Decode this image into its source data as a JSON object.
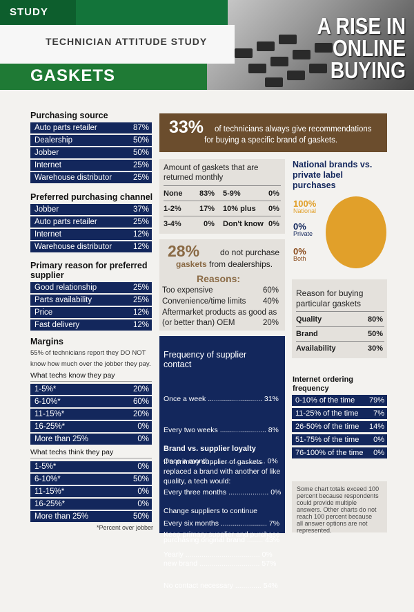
{
  "header": {
    "study_tab": "STUDY",
    "subtitle": "TECHNICIAN ATTITUDE STUDY",
    "section_title": "GASKETS",
    "headline": [
      "A RISE IN",
      "ONLINE",
      "BUYING"
    ]
  },
  "purchasing_source": {
    "title": "Purchasing source",
    "rows": [
      {
        "label": "Auto parts retailer",
        "value": "87%"
      },
      {
        "label": "Dealership",
        "value": "50%"
      },
      {
        "label": "Jobber",
        "value": "50%"
      },
      {
        "label": "Internet",
        "value": "25%"
      },
      {
        "label": "Warehouse distributor",
        "value": "25%"
      }
    ]
  },
  "preferred_channel": {
    "title": "Preferred purchasing channel",
    "rows": [
      {
        "label": "Jobber",
        "value": "37%"
      },
      {
        "label": "Auto parts retailer",
        "value": "25%"
      },
      {
        "label": "Internet",
        "value": "12%"
      },
      {
        "label": "Warehouse distributor",
        "value": "12%"
      }
    ]
  },
  "primary_reason": {
    "title_line1": "Primary reason for preferred",
    "title_line2": "supplier",
    "rows": [
      {
        "label": "Good relationship",
        "value": "25%"
      },
      {
        "label": "Parts availability",
        "value": "25%"
      },
      {
        "label": "Price",
        "value": "12%"
      },
      {
        "label": "Fast delivery",
        "value": "12%"
      }
    ]
  },
  "margins": {
    "title": "Margins",
    "note_line1": "55% of technicians report they DO NOT",
    "note_line2": "know how much over the jobber they pay.",
    "know_title": "What techs know they pay",
    "know_rows": [
      {
        "label": "1-5%*",
        "value": "20%"
      },
      {
        "label": "6-10%*",
        "value": "60%"
      },
      {
        "label": "11-15%*",
        "value": "20%"
      },
      {
        "label": "16-25%*",
        "value": "0%"
      },
      {
        "label": "More than 25%",
        "value": "0%"
      }
    ],
    "think_title": "What techs think they pay",
    "think_rows": [
      {
        "label": "1-5%*",
        "value": "0%"
      },
      {
        "label": "6-10%*",
        "value": "50%"
      },
      {
        "label": "11-15%*",
        "value": "0%"
      },
      {
        "label": "16-25%*",
        "value": "0%"
      },
      {
        "label": "More than 25%",
        "value": "50%"
      }
    ],
    "footnote": "*Percent over jobber"
  },
  "banner": {
    "pct": "33%",
    "text_line1": "of technicians always give recommendations",
    "text_line2": "for buying a specific brand of gaskets."
  },
  "amount_returned": {
    "title_line1": "Amount of gaskets that are",
    "title_line2": "returned monthly",
    "cells": [
      {
        "label": "None",
        "value": "83%"
      },
      {
        "label": "5-9%",
        "value": "0%"
      },
      {
        "label": "1-2%",
        "value": "17%"
      },
      {
        "label": "10% plus",
        "value": "0%"
      },
      {
        "label": "3-4%",
        "value": "0%"
      },
      {
        "label": "Don't know",
        "value": "0%"
      }
    ]
  },
  "dealership": {
    "pct": "28%",
    "text_a": "do not purchase",
    "text_b_highlight": "gaskets",
    "text_b": "from dealerships.",
    "reasons_title": "Reasons:",
    "reasons": [
      {
        "label": "Too expensive",
        "value": "60%"
      },
      {
        "label": "Convenience/time limits",
        "value": "40%"
      },
      {
        "label": "Aftermarket products as good as",
        "value": ""
      },
      {
        "label": "(or better than) OEM",
        "value": "20%"
      }
    ]
  },
  "national_brands": {
    "title_line1": "National brands vs.",
    "title_line2": "private label",
    "title_line3": "purchases",
    "items": [
      {
        "pct": "100%",
        "label": "National",
        "color": "#e1a02a"
      },
      {
        "pct": "0%",
        "label": "Private",
        "color": "#13275c"
      },
      {
        "pct": "0%",
        "label": "Both",
        "color": "#8a4a1a"
      }
    ],
    "chart_data": {
      "type": "pie",
      "categories": [
        "National",
        "Private",
        "Both"
      ],
      "values": [
        100,
        0,
        0
      ],
      "title": "National brands vs. private label purchases"
    }
  },
  "reason_buying": {
    "title_line1": "Reason for buying",
    "title_line2": "particular gaskets",
    "rows": [
      {
        "label": "Quality",
        "value": "80%"
      },
      {
        "label": "Brand",
        "value": "50%"
      },
      {
        "label": "Availability",
        "value": "30%"
      }
    ]
  },
  "frequency": {
    "title_line1": "Frequency of supplier",
    "title_line2": "contact",
    "rows": [
      "Once a week ........................... 31%",
      "Every two weeks ....................... 8%",
      "Once a month ........................... 0%",
      "Every three months .................... 0%",
      "Every six months ....................... 7%",
      "Yearly ..................................... 0%",
      "No contact necessary ............. 54%"
    ],
    "loyalty_title": "Brand vs. supplier loyalty",
    "loyalty_intro_1": "If a primary supplier of gaskets",
    "loyalty_intro_2": "replaced a brand with another of like",
    "loyalty_intro_3": "quality, a tech would:",
    "loyalty_a1": "Change suppliers to continue",
    "loyalty_a2": "purchasing original brand ........ 43%",
    "loyalty_b1": "Keep primary supplier and purchase",
    "loyalty_b2": "new brand .............................. 57%"
  },
  "internet_freq": {
    "title_line1": "Internet ordering",
    "title_line2": "frequency",
    "rows": [
      {
        "label": "0-10% of the time",
        "value": "79%"
      },
      {
        "label": "11-25% of the time",
        "value": "7%"
      },
      {
        "label": "26-50% of the time",
        "value": "14%"
      },
      {
        "label": "51-75% of the time",
        "value": "0%"
      },
      {
        "label": "76-100% of the time",
        "value": "0%"
      }
    ]
  },
  "note": {
    "lines": [
      "Some chart totals exceed 100",
      "percent because respondents",
      "could provide multiple",
      "answers. Other charts do not",
      "reach 100 percent because",
      "all answer options are not",
      "represented."
    ]
  }
}
